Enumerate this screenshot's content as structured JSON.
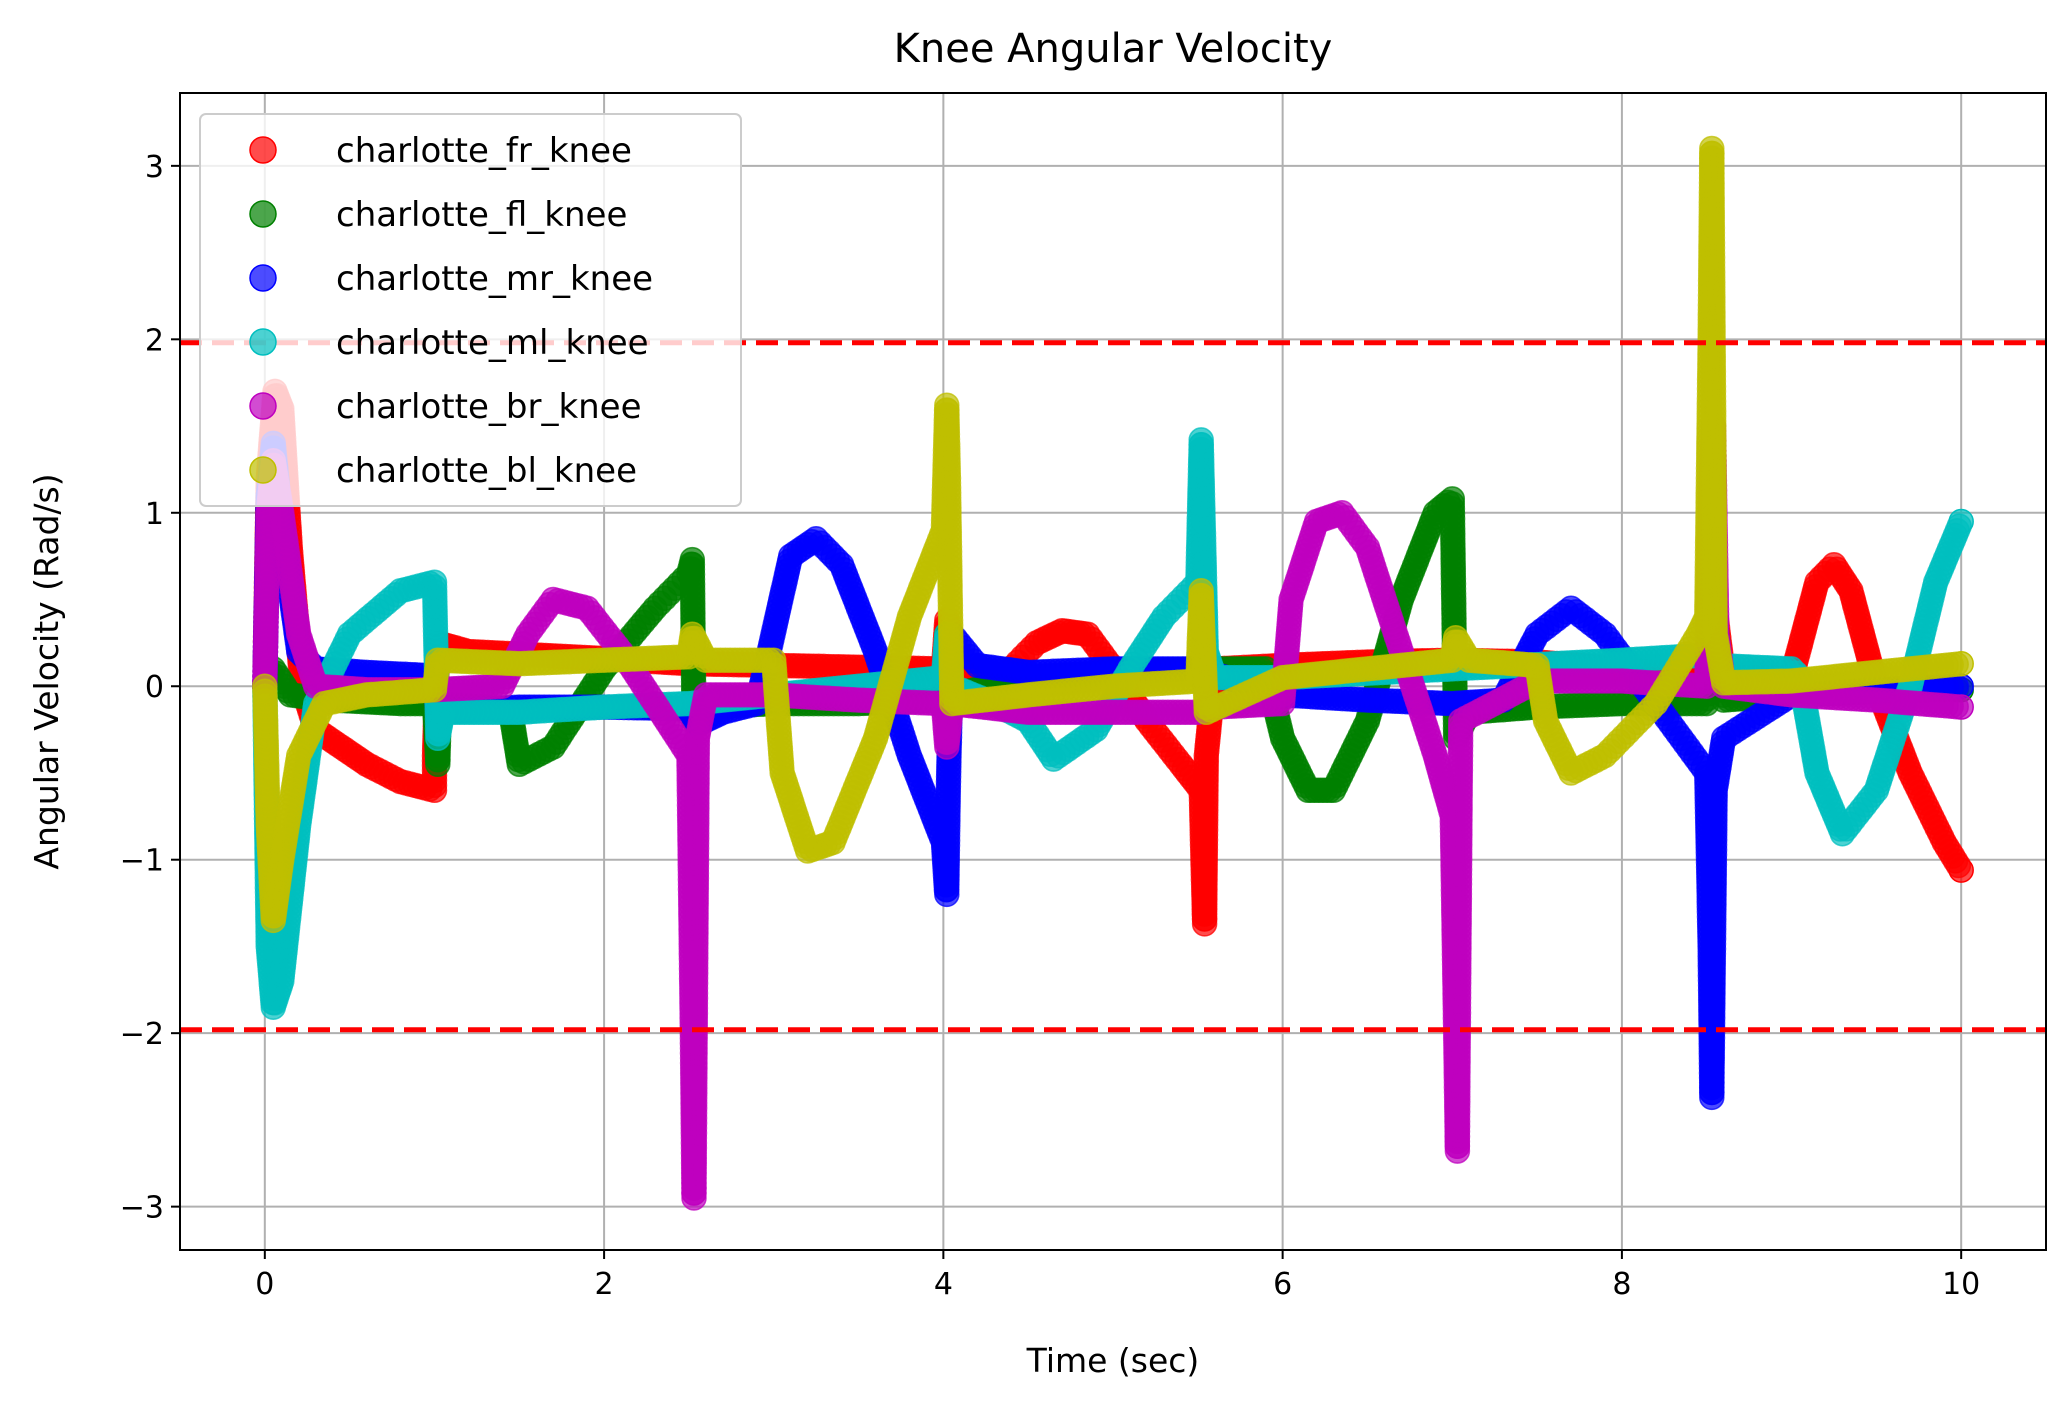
{
  "chart_data": {
    "type": "scatter",
    "title": "Knee Angular Velocity",
    "xlabel": "Time (sec)",
    "ylabel": "Angular Velocity (Rad/s)",
    "xlim": [
      -0.5,
      10.5
    ],
    "ylim": [
      -3.25,
      3.42
    ],
    "xticks": [
      0,
      2,
      4,
      6,
      8,
      10
    ],
    "xtick_labels": [
      "0",
      "2",
      "4",
      "6",
      "8",
      "10"
    ],
    "yticks": [
      -3,
      -2,
      -1,
      0,
      1,
      2,
      3
    ],
    "ytick_labels": [
      "−3",
      "−2",
      "−1",
      "0",
      "1",
      "2",
      "3"
    ],
    "grid": true,
    "legend_position": "top-left",
    "limit_lines": [
      {
        "y": 1.98,
        "color": "#ff0000",
        "style": "dashed"
      },
      {
        "y": -1.98,
        "color": "#ff0000",
        "style": "dashed"
      }
    ],
    "series": [
      {
        "name": "charlotte_fr_knee",
        "color": "#ff0000",
        "points": [
          [
            0,
            0
          ],
          [
            0.02,
            1.2
          ],
          [
            0.06,
            1.7
          ],
          [
            0.1,
            1.6
          ],
          [
            0.15,
            0.8
          ],
          [
            0.22,
            0
          ],
          [
            0.3,
            -0.25
          ],
          [
            0.45,
            -0.35
          ],
          [
            0.6,
            -0.45
          ],
          [
            0.8,
            -0.55
          ],
          [
            1.0,
            -0.6
          ],
          [
            1.0,
            -0.4
          ],
          [
            1.02,
            0.25
          ],
          [
            1.2,
            0.2
          ],
          [
            1.6,
            0.18
          ],
          [
            2.0,
            0.16
          ],
          [
            2.5,
            0.13
          ],
          [
            3.0,
            0.12
          ],
          [
            3.5,
            0.11
          ],
          [
            4.0,
            0.1
          ],
          [
            4.02,
            0.38
          ],
          [
            4.1,
            0.1
          ],
          [
            4.3,
            0
          ],
          [
            4.55,
            0.25
          ],
          [
            4.7,
            0.32
          ],
          [
            4.85,
            0.3
          ],
          [
            5.0,
            0.1
          ],
          [
            5.2,
            -0.2
          ],
          [
            5.4,
            -0.45
          ],
          [
            5.52,
            -0.6
          ],
          [
            5.53,
            -1.0
          ],
          [
            5.54,
            -1.37
          ],
          [
            5.55,
            -0.4
          ],
          [
            5.6,
            0.1
          ],
          [
            6.0,
            0.12
          ],
          [
            6.5,
            0.14
          ],
          [
            7.0,
            0.15
          ],
          [
            7.5,
            0.14
          ],
          [
            8.0,
            0.1
          ],
          [
            8.5,
            0.05
          ],
          [
            8.55,
            0.45
          ],
          [
            8.6,
            0.05
          ],
          [
            9.0,
            0.05
          ],
          [
            9.15,
            0.6
          ],
          [
            9.25,
            0.7
          ],
          [
            9.35,
            0.55
          ],
          [
            9.5,
            0
          ],
          [
            9.7,
            -0.5
          ],
          [
            9.9,
            -0.9
          ],
          [
            10.0,
            -1.06
          ]
        ]
      },
      {
        "name": "charlotte_fl_knee",
        "color": "#008000",
        "points": [
          [
            0,
            0
          ],
          [
            0.05,
            0.1
          ],
          [
            0.15,
            -0.05
          ],
          [
            0.4,
            -0.08
          ],
          [
            0.8,
            -0.1
          ],
          [
            1.0,
            -0.1
          ],
          [
            1.02,
            -0.45
          ],
          [
            1.03,
            -0.1
          ],
          [
            1.3,
            -0.12
          ],
          [
            1.45,
            -0.15
          ],
          [
            1.5,
            -0.45
          ],
          [
            1.7,
            -0.35
          ],
          [
            2.0,
            0.1
          ],
          [
            2.3,
            0.45
          ],
          [
            2.5,
            0.65
          ],
          [
            2.52,
            0.73
          ],
          [
            2.53,
            -0.2
          ],
          [
            2.6,
            -0.12
          ],
          [
            3.0,
            -0.1
          ],
          [
            3.5,
            -0.1
          ],
          [
            4.0,
            -0.08
          ],
          [
            4.02,
            0.3
          ],
          [
            4.05,
            -0.05
          ],
          [
            4.5,
            0.05
          ],
          [
            5.0,
            0.08
          ],
          [
            5.5,
            0.1
          ],
          [
            5.9,
            0.1
          ],
          [
            6.0,
            -0.3
          ],
          [
            6.15,
            -0.6
          ],
          [
            6.3,
            -0.6
          ],
          [
            6.5,
            -0.2
          ],
          [
            6.7,
            0.5
          ],
          [
            6.9,
            1.0
          ],
          [
            7.0,
            1.08
          ],
          [
            7.02,
            -0.3
          ],
          [
            7.1,
            -0.15
          ],
          [
            7.5,
            -0.12
          ],
          [
            8.0,
            -0.1
          ],
          [
            8.5,
            -0.1
          ],
          [
            8.55,
            0.4
          ],
          [
            8.6,
            -0.08
          ],
          [
            9.0,
            -0.05
          ],
          [
            9.5,
            -0.03
          ],
          [
            10.0,
            -0.02
          ]
        ]
      },
      {
        "name": "charlotte_mr_knee",
        "color": "#0000ff",
        "points": [
          [
            0,
            0
          ],
          [
            0.02,
            1.1
          ],
          [
            0.05,
            1.4
          ],
          [
            0.1,
            0.9
          ],
          [
            0.2,
            0.2
          ],
          [
            0.3,
            0.1
          ],
          [
            0.6,
            0.08
          ],
          [
            1.0,
            0.06
          ],
          [
            1.02,
            -0.15
          ],
          [
            1.5,
            -0.12
          ],
          [
            2.0,
            -0.12
          ],
          [
            2.5,
            -0.13
          ],
          [
            2.55,
            -0.22
          ],
          [
            2.7,
            -0.15
          ],
          [
            2.9,
            -0.1
          ],
          [
            2.95,
            0.1
          ],
          [
            3.1,
            0.75
          ],
          [
            3.25,
            0.85
          ],
          [
            3.4,
            0.7
          ],
          [
            3.6,
            0.2
          ],
          [
            3.8,
            -0.4
          ],
          [
            4.0,
            -0.9
          ],
          [
            4.02,
            -1.2
          ],
          [
            4.03,
            -0.55
          ],
          [
            4.05,
            0.3
          ],
          [
            4.2,
            0.12
          ],
          [
            4.5,
            0.08
          ],
          [
            5.0,
            0.1
          ],
          [
            5.5,
            0.1
          ],
          [
            6.0,
            -0.05
          ],
          [
            6.5,
            -0.08
          ],
          [
            7.0,
            -0.1
          ],
          [
            7.3,
            -0.08
          ],
          [
            7.5,
            0.3
          ],
          [
            7.7,
            0.45
          ],
          [
            7.9,
            0.3
          ],
          [
            8.2,
            -0.1
          ],
          [
            8.5,
            -0.5
          ],
          [
            8.52,
            -1.5
          ],
          [
            8.53,
            -2.37
          ],
          [
            8.55,
            -0.6
          ],
          [
            8.6,
            -0.3
          ],
          [
            9.0,
            -0.05
          ],
          [
            9.5,
            -0.02
          ],
          [
            10.0,
            0
          ]
        ]
      },
      {
        "name": "charlotte_ml_knee",
        "color": "#00bfbf",
        "points": [
          [
            0,
            0
          ],
          [
            0.02,
            -1.5
          ],
          [
            0.05,
            -1.85
          ],
          [
            0.1,
            -1.7
          ],
          [
            0.2,
            -0.8
          ],
          [
            0.3,
            -0.1
          ],
          [
            0.5,
            0.3
          ],
          [
            0.8,
            0.55
          ],
          [
            1.0,
            0.6
          ],
          [
            1.02,
            -0.3
          ],
          [
            1.05,
            -0.15
          ],
          [
            1.5,
            -0.15
          ],
          [
            2.0,
            -0.12
          ],
          [
            2.5,
            -0.1
          ],
          [
            3.0,
            -0.05
          ],
          [
            3.5,
            0
          ],
          [
            4.0,
            0.05
          ],
          [
            4.02,
            0.3
          ],
          [
            4.05,
            0
          ],
          [
            4.3,
            -0.1
          ],
          [
            4.5,
            -0.2
          ],
          [
            4.65,
            -0.42
          ],
          [
            4.9,
            -0.25
          ],
          [
            5.1,
            0.1
          ],
          [
            5.3,
            0.4
          ],
          [
            5.5,
            0.6
          ],
          [
            5.52,
            1.42
          ],
          [
            5.55,
            0.2
          ],
          [
            5.6,
            0.05
          ],
          [
            6.0,
            0.05
          ],
          [
            7.0,
            0.1
          ],
          [
            8.0,
            0.15
          ],
          [
            8.5,
            0.18
          ],
          [
            8.55,
            0.12
          ],
          [
            9.0,
            0.1
          ],
          [
            9.05,
            0.05
          ],
          [
            9.15,
            -0.5
          ],
          [
            9.3,
            -0.85
          ],
          [
            9.5,
            -0.6
          ],
          [
            9.7,
            0
          ],
          [
            9.85,
            0.6
          ],
          [
            10.0,
            0.95
          ]
        ]
      },
      {
        "name": "charlotte_br_knee",
        "color": "#bf00bf",
        "points": [
          [
            0,
            0
          ],
          [
            0.02,
            1.0
          ],
          [
            0.05,
            1.3
          ],
          [
            0.1,
            1.0
          ],
          [
            0.2,
            0.3
          ],
          [
            0.3,
            0
          ],
          [
            0.6,
            -0.02
          ],
          [
            1.0,
            -0.02
          ],
          [
            1.4,
            0
          ],
          [
            1.55,
            0.3
          ],
          [
            1.7,
            0.5
          ],
          [
            1.9,
            0.45
          ],
          [
            2.1,
            0.2
          ],
          [
            2.3,
            -0.1
          ],
          [
            2.5,
            -0.4
          ],
          [
            2.52,
            -2.0
          ],
          [
            2.53,
            -2.95
          ],
          [
            2.55,
            -0.3
          ],
          [
            2.6,
            -0.05
          ],
          [
            3.0,
            -0.05
          ],
          [
            3.5,
            -0.08
          ],
          [
            4.0,
            -0.1
          ],
          [
            4.02,
            -0.35
          ],
          [
            4.05,
            -0.1
          ],
          [
            4.5,
            -0.15
          ],
          [
            5.0,
            -0.15
          ],
          [
            5.5,
            -0.15
          ],
          [
            5.6,
            -0.12
          ],
          [
            6.0,
            -0.1
          ],
          [
            6.05,
            0.5
          ],
          [
            6.2,
            0.95
          ],
          [
            6.35,
            1.0
          ],
          [
            6.5,
            0.8
          ],
          [
            6.7,
            0.2
          ],
          [
            6.9,
            -0.4
          ],
          [
            7.0,
            -0.75
          ],
          [
            7.02,
            -2.0
          ],
          [
            7.03,
            -2.68
          ],
          [
            7.05,
            -0.2
          ],
          [
            7.5,
            0.03
          ],
          [
            8.0,
            0.03
          ],
          [
            8.5,
            0
          ],
          [
            8.52,
            1.0
          ],
          [
            8.54,
            1.5
          ],
          [
            8.56,
            0.3
          ],
          [
            8.6,
            0
          ],
          [
            9.0,
            -0.05
          ],
          [
            9.5,
            -0.08
          ],
          [
            10.0,
            -0.12
          ]
        ]
      },
      {
        "name": "charlotte_bl_knee",
        "color": "#bfbf00",
        "points": [
          [
            0,
            0
          ],
          [
            0.02,
            -0.8
          ],
          [
            0.05,
            -1.35
          ],
          [
            0.1,
            -1.0
          ],
          [
            0.2,
            -0.4
          ],
          [
            0.35,
            -0.1
          ],
          [
            0.6,
            -0.05
          ],
          [
            1.0,
            -0.02
          ],
          [
            1.02,
            0.15
          ],
          [
            1.5,
            0.13
          ],
          [
            2.0,
            0.15
          ],
          [
            2.5,
            0.17
          ],
          [
            2.52,
            0.3
          ],
          [
            2.6,
            0.15
          ],
          [
            3.0,
            0.15
          ],
          [
            3.05,
            -0.5
          ],
          [
            3.2,
            -0.95
          ],
          [
            3.35,
            -0.9
          ],
          [
            3.6,
            -0.3
          ],
          [
            3.8,
            0.4
          ],
          [
            4.0,
            0.9
          ],
          [
            4.02,
            1.62
          ],
          [
            4.03,
            1.2
          ],
          [
            4.05,
            -0.1
          ],
          [
            4.5,
            -0.05
          ],
          [
            5.0,
            0
          ],
          [
            5.5,
            0.03
          ],
          [
            5.52,
            0.55
          ],
          [
            5.55,
            -0.15
          ],
          [
            6.0,
            0.05
          ],
          [
            6.5,
            0.1
          ],
          [
            7.0,
            0.15
          ],
          [
            7.02,
            0.28
          ],
          [
            7.1,
            0.15
          ],
          [
            7.5,
            0.12
          ],
          [
            7.55,
            -0.2
          ],
          [
            7.7,
            -0.5
          ],
          [
            7.9,
            -0.4
          ],
          [
            8.2,
            -0.1
          ],
          [
            8.45,
            0.3
          ],
          [
            8.5,
            0.4
          ],
          [
            8.52,
            2.0
          ],
          [
            8.53,
            3.1
          ],
          [
            8.55,
            0.3
          ],
          [
            8.6,
            0.02
          ],
          [
            9.0,
            0.03
          ],
          [
            9.5,
            0.08
          ],
          [
            10.0,
            0.13
          ]
        ]
      }
    ]
  }
}
